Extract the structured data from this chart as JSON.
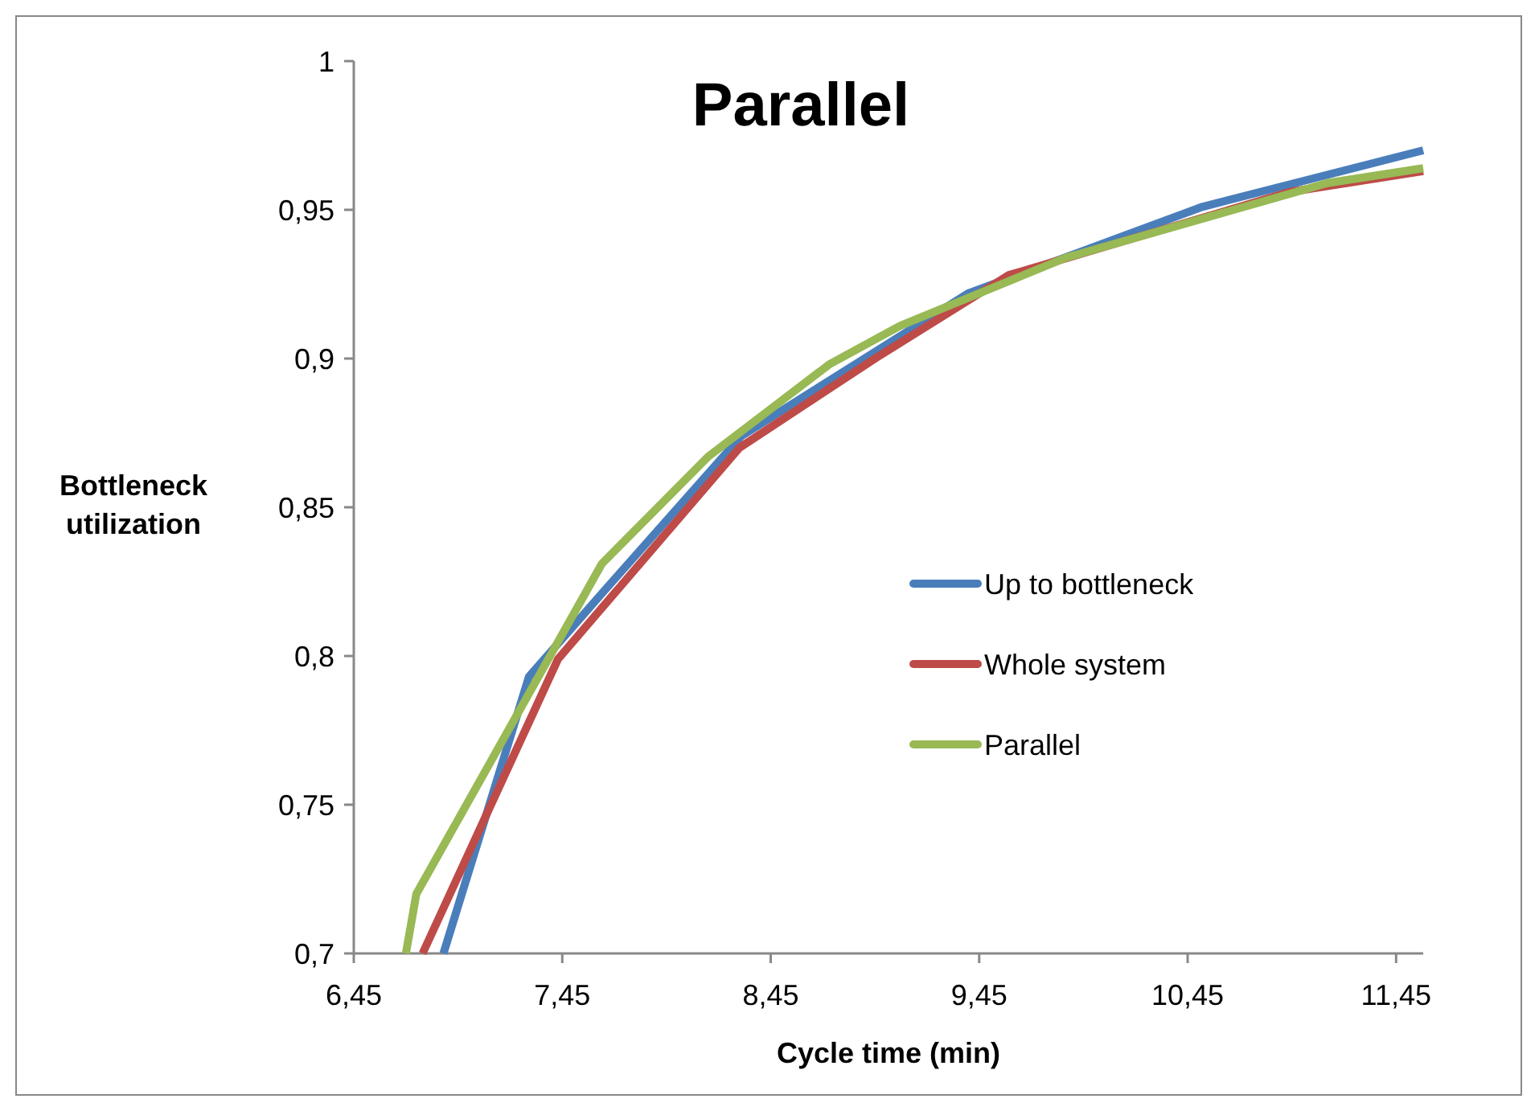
{
  "chart_data": {
    "type": "line",
    "title": "Parallel",
    "xlabel": "Cycle time (min)",
    "ylabel": "Bottleneck utilization",
    "xlim": [
      6.45,
      11.58
    ],
    "xticks": [
      {
        "value": 6.45,
        "label": "6,45"
      },
      {
        "value": 7.45,
        "label": "7,45"
      },
      {
        "value": 8.45,
        "label": "8,45"
      },
      {
        "value": 9.45,
        "label": "9,45"
      },
      {
        "value": 10.45,
        "label": "10,45"
      },
      {
        "value": 11.45,
        "label": "11,45"
      }
    ],
    "ylim": [
      0.7,
      1
    ],
    "yticks": [
      {
        "value": 0.7,
        "label": "0,7"
      },
      {
        "value": 0.75,
        "label": "0,75"
      },
      {
        "value": 0.8,
        "label": "0,8"
      },
      {
        "value": 0.85,
        "label": "0,85"
      },
      {
        "value": 0.9,
        "label": "0,9"
      },
      {
        "value": 0.95,
        "label": "0,95"
      },
      {
        "value": 1,
        "label": "1"
      }
    ],
    "grid": false,
    "legend": "right",
    "line_style": "solid",
    "series": [
      {
        "name": "Up to bottleneck",
        "color": "#4a7ebb",
        "x": [
          6.88,
          7.29,
          7.64,
          8.31,
          9.4,
          10.52,
          11.58
        ],
        "values": [
          0.7,
          0.793,
          0.821,
          0.874,
          0.922,
          0.951,
          0.97
        ]
      },
      {
        "name": "Whole system",
        "color": "#be4b48",
        "x": [
          6.78,
          7.43,
          8.3,
          8.95,
          9.59,
          10.94,
          11.58
        ],
        "values": [
          0.7,
          0.799,
          0.87,
          0.9,
          0.928,
          0.956,
          0.963
        ]
      },
      {
        "name": "Parallel",
        "color": "#98b954",
        "x": [
          6.7,
          6.75,
          7.64,
          8.15,
          8.73,
          9.07,
          9.87,
          11.12,
          11.58
        ],
        "values": [
          0.7,
          0.72,
          0.831,
          0.867,
          0.898,
          0.911,
          0.934,
          0.959,
          0.964
        ]
      }
    ]
  }
}
